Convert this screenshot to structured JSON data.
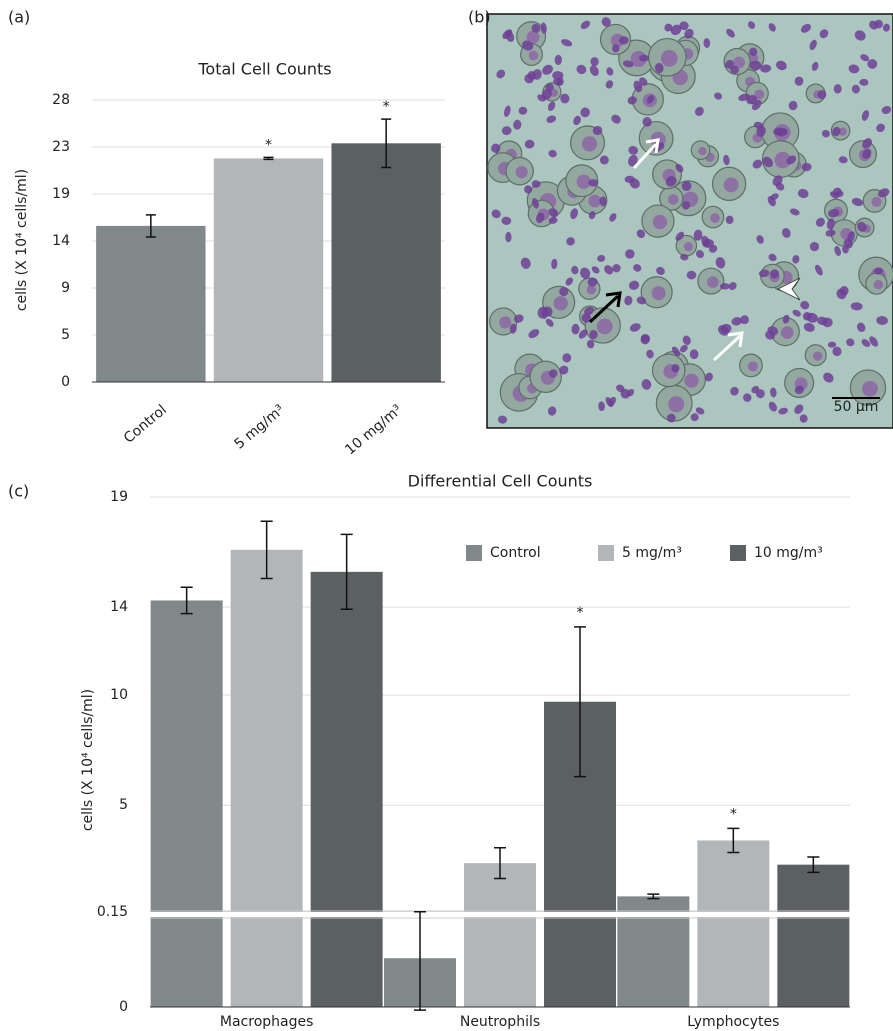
{
  "chart_data": [
    {
      "type": "bar",
      "panel_label": "(a)",
      "title": "Total Cell Counts",
      "y_label": "cells (X 10⁴ cells/ml)",
      "categories": [
        "Control",
        "5 mg/m³",
        "10 mg/m³"
      ],
      "values": [
        15.5,
        22.2,
        23.7
      ],
      "errors": [
        1.1,
        0.1,
        2.4
      ],
      "significance": [
        null,
        "*",
        "*"
      ],
      "colors": [
        "#80888a",
        "#b3b6b8",
        "#5b6163"
      ],
      "ylim": [
        0,
        28
      ],
      "yticks": [
        0,
        {
          "value": 4.67,
          "label": "5"
        },
        {
          "value": 9.33,
          "label": "9"
        },
        14,
        {
          "value": 18.67,
          "label": "19"
        },
        {
          "value": 23.33,
          "label": "23"
        },
        28
      ],
      "grid": true
    },
    {
      "type": "grouped_bar",
      "panel_label": "(c)",
      "title": "Differential Cell Counts",
      "y_label": "cells (X 10⁴ cells/ml)",
      "categories": [
        "Macrophages",
        "Neutrophils",
        "Lymphocytes"
      ],
      "series": [
        {
          "name": "Control",
          "color": "#80888a",
          "values": [
            14.3,
            0.077,
            0.86
          ],
          "errors": [
            0.6,
            0.082,
            0.1
          ],
          "significance": [
            null,
            null,
            null
          ]
        },
        {
          "name": "5 mg/m³",
          "color": "#b3b6b8",
          "values": [
            16.6,
            2.37,
            3.4
          ],
          "errors": [
            1.3,
            0.7,
            0.55
          ],
          "significance": [
            null,
            null,
            "*"
          ]
        },
        {
          "name": "10 mg/m³",
          "color": "#5b6163",
          "values": [
            15.6,
            9.7,
            2.3
          ],
          "errors": [
            1.7,
            3.4,
            0.35
          ],
          "significance": [
            null,
            "*",
            null
          ]
        }
      ],
      "ylim": [
        0,
        19
      ],
      "axis_break": 0.15,
      "yticks": [
        0,
        0.15,
        5,
        10,
        14,
        19
      ],
      "grid": true,
      "legend": "top-right"
    }
  ],
  "figure_b": {
    "panel_label": "(b)",
    "scale_bar": "50 µm"
  }
}
